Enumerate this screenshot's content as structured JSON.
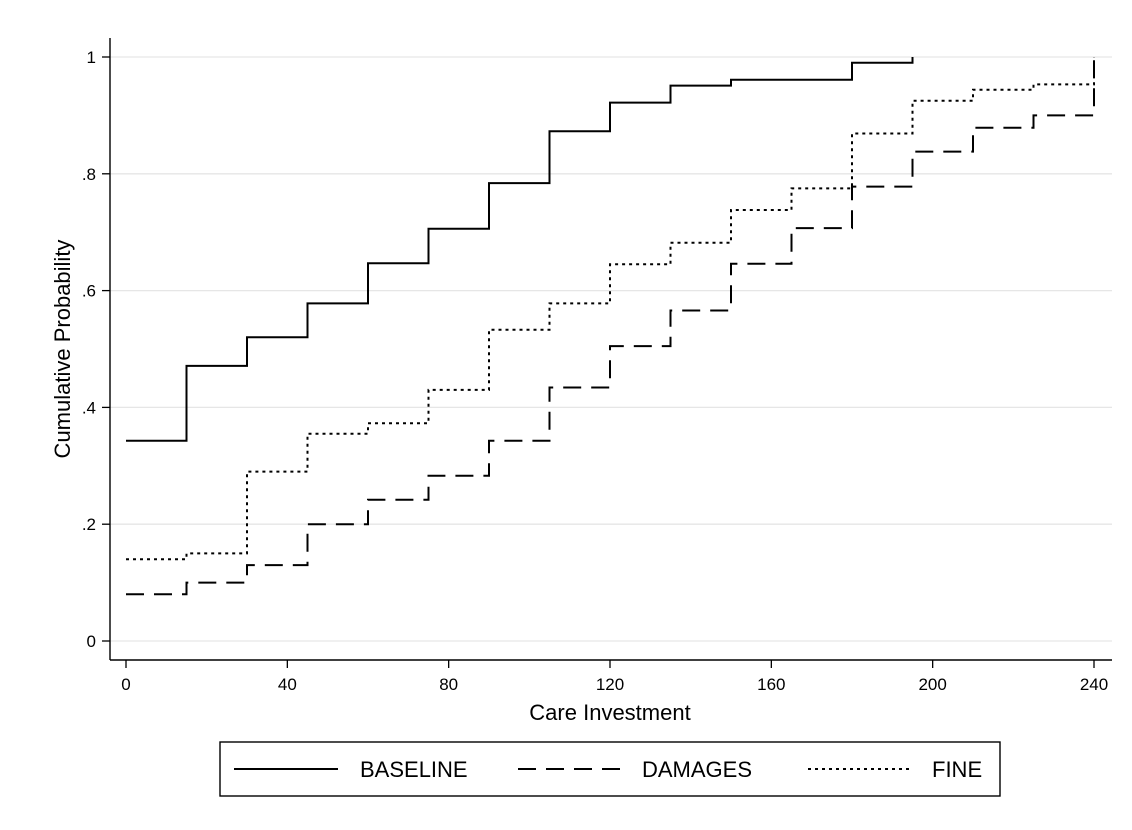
{
  "chart_data": {
    "type": "line",
    "step": true,
    "title": "",
    "xlabel": "Care Investment",
    "ylabel": "Cumulative Probability",
    "xlim": [
      0,
      240
    ],
    "ylim": [
      0,
      1
    ],
    "x_ticks": [
      0,
      40,
      80,
      120,
      160,
      200,
      240
    ],
    "x_tick_labels": [
      "0",
      "40",
      "80",
      "120",
      "160",
      "200",
      "240"
    ],
    "y_ticks": [
      0,
      0.2,
      0.4,
      0.6,
      0.8,
      1
    ],
    "y_tick_labels": [
      "0",
      ".2",
      ".4",
      ".6",
      ".8",
      "1"
    ],
    "grid": "horizontal",
    "legend_position": "bottom",
    "series": [
      {
        "name": "BASELINE",
        "line_style": "solid",
        "color": "#000000",
        "x": [
          0,
          15,
          30,
          45,
          60,
          75,
          90,
          105,
          120,
          135,
          150,
          180,
          195
        ],
        "y": [
          0.343,
          0.471,
          0.52,
          0.578,
          0.647,
          0.706,
          0.784,
          0.873,
          0.922,
          0.951,
          0.961,
          0.99,
          1.0
        ]
      },
      {
        "name": "DAMAGES",
        "line_style": "dashed",
        "color": "#000000",
        "x": [
          0,
          15,
          30,
          45,
          60,
          75,
          90,
          105,
          120,
          135,
          150,
          165,
          180,
          195,
          210,
          225,
          240
        ],
        "y": [
          0.08,
          0.1,
          0.13,
          0.2,
          0.242,
          0.283,
          0.343,
          0.434,
          0.505,
          0.566,
          0.646,
          0.707,
          0.778,
          0.838,
          0.879,
          0.9,
          1.0
        ]
      },
      {
        "name": "FINE",
        "line_style": "dotted",
        "color": "#000000",
        "x": [
          0,
          15,
          30,
          45,
          60,
          75,
          90,
          105,
          120,
          135,
          150,
          165,
          180,
          195,
          210,
          225,
          240
        ],
        "y": [
          0.14,
          0.15,
          0.29,
          0.355,
          0.373,
          0.43,
          0.533,
          0.578,
          0.645,
          0.682,
          0.738,
          0.775,
          0.869,
          0.925,
          0.944,
          0.953,
          1.0
        ]
      }
    ],
    "colors": {
      "line": "#000000",
      "grid": "#e6e6e6",
      "background": "#ffffff"
    }
  }
}
